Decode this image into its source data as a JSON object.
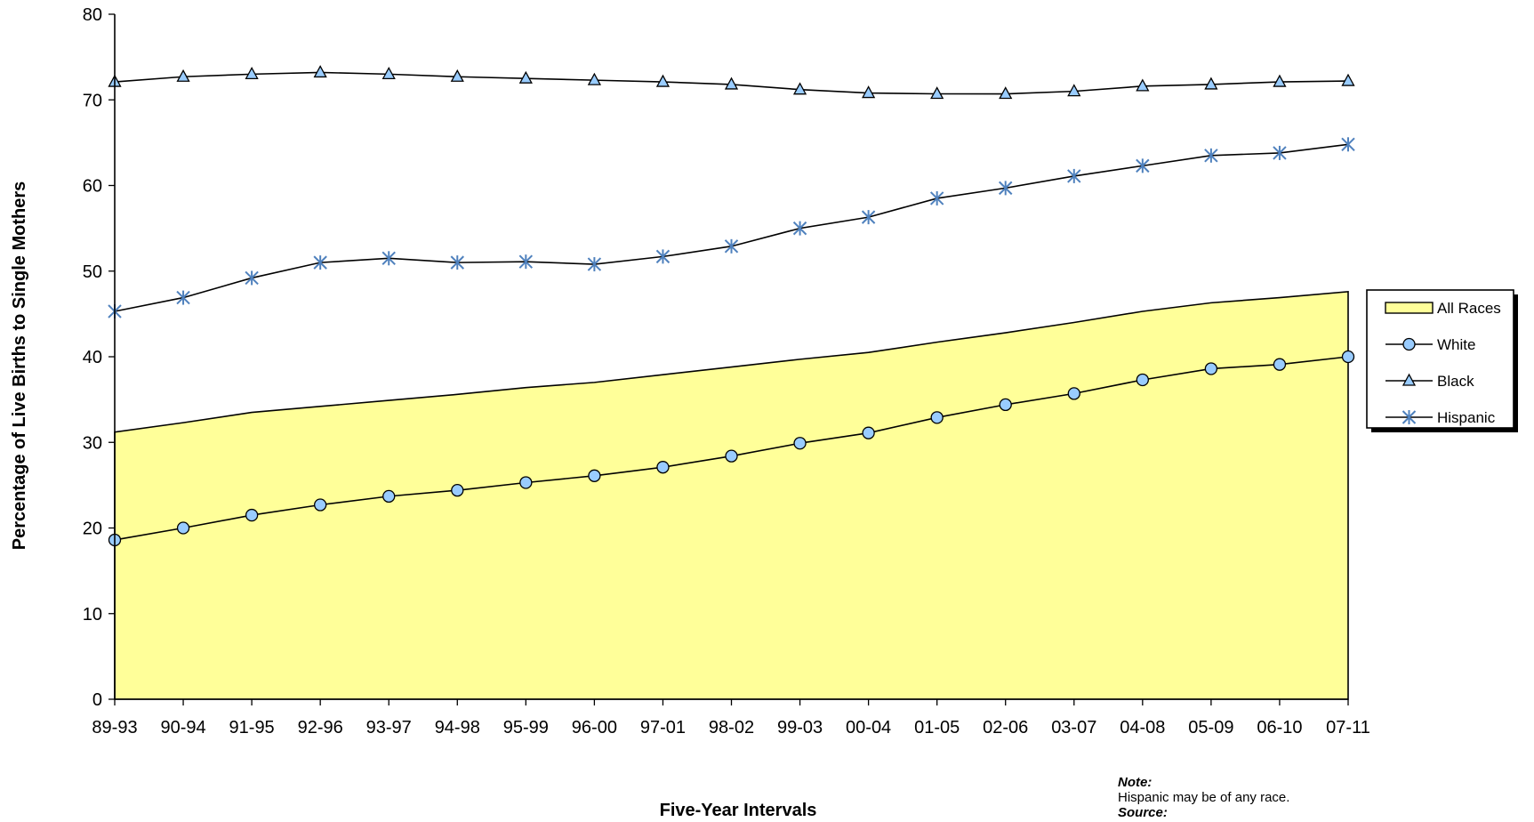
{
  "chart_data": {
    "type": "line",
    "xlabel": "Five-Year Intervals",
    "ylabel": "Percentage of Live Births to Single Mothers",
    "ylim": [
      0,
      80
    ],
    "yticks": [
      0,
      10,
      20,
      30,
      40,
      50,
      60,
      70,
      80
    ],
    "grid": false,
    "legend_position": "right",
    "categories": [
      "89-93",
      "90-94",
      "91-95",
      "92-96",
      "93-97",
      "94-98",
      "95-99",
      "96-00",
      "97-01",
      "98-02",
      "99-03",
      "00-04",
      "01-05",
      "02-06",
      "03-07",
      "04-08",
      "05-09",
      "06-10",
      "07-11"
    ],
    "series": [
      {
        "name": "All Races",
        "style": "area",
        "marker": "none",
        "color": "#FFFF99",
        "values": [
          31.2,
          32.3,
          33.5,
          34.2,
          34.9,
          35.6,
          36.4,
          37.0,
          37.9,
          38.8,
          39.7,
          40.5,
          41.7,
          42.8,
          44.0,
          45.3,
          46.3,
          46.9,
          47.6
        ]
      },
      {
        "name": "White",
        "style": "line",
        "marker": "circle",
        "color": "#99CCFF",
        "values": [
          18.6,
          20.0,
          21.5,
          22.7,
          23.7,
          24.4,
          25.3,
          26.1,
          27.1,
          28.4,
          29.9,
          31.1,
          32.9,
          34.4,
          35.7,
          37.3,
          38.6,
          39.1,
          40.0
        ]
      },
      {
        "name": "Black",
        "style": "line",
        "marker": "triangle",
        "color": "#99CCFF",
        "values": [
          72.1,
          72.7,
          73.0,
          73.2,
          73.0,
          72.7,
          72.5,
          72.3,
          72.1,
          71.8,
          71.2,
          70.8,
          70.7,
          70.7,
          71.0,
          71.6,
          71.8,
          72.1,
          72.2
        ]
      },
      {
        "name": "Hispanic",
        "style": "line",
        "marker": "asterisk",
        "color": "#4F81BD",
        "values": [
          45.3,
          46.9,
          49.2,
          51.0,
          51.5,
          51.0,
          51.1,
          50.8,
          51.7,
          52.9,
          55.0,
          56.3,
          58.5,
          59.7,
          61.1,
          62.3,
          63.5,
          63.8,
          64.8
        ]
      }
    ]
  },
  "note": {
    "note_label": "Note:",
    "note_text": "Hispanic may be of any race.",
    "source_label": "Source:"
  }
}
